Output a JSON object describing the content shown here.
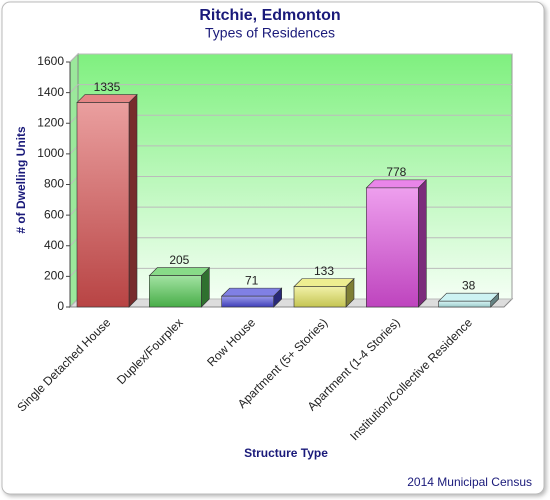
{
  "chart_data": {
    "type": "bar3d",
    "title": "Ritchie, Edmonton",
    "subtitle": "Types of Residences",
    "y_label": "# of Dwelling Units",
    "x_label": "Structure Type",
    "footer": "2014 Municipal Census",
    "categories": [
      "Single Detached House",
      "Duplex/Fourplex",
      "Row House",
      "Apartment (5+ Stories)",
      "Apartment (1-4 Stories)",
      "Institution/Collective Residence"
    ],
    "values": [
      1335,
      205,
      71,
      133,
      778,
      38
    ],
    "colors": [
      "#d85050",
      "#55cc55",
      "#4a4ad8",
      "#e6e660",
      "#e050e0",
      "#b8eeee"
    ],
    "ylim": [
      0,
      1600
    ],
    "yticks": [
      0,
      200,
      400,
      600,
      800,
      1000,
      1200,
      1400,
      1600
    ],
    "grid": true
  }
}
